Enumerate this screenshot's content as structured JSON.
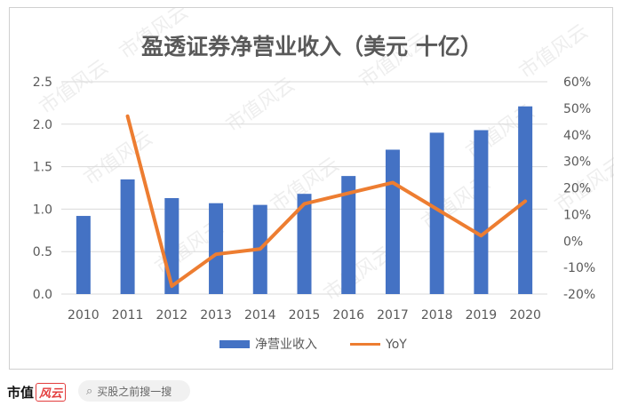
{
  "chart_data": {
    "type": "bar+line",
    "title": "盈透证券净营业收入（美元 十亿）",
    "categories": [
      "2010",
      "2011",
      "2012",
      "2013",
      "2014",
      "2015",
      "2016",
      "2017",
      "2018",
      "2019",
      "2020"
    ],
    "series": [
      {
        "name": "净营业收入",
        "type": "bar",
        "axis": "left",
        "values": [
          0.92,
          1.35,
          1.13,
          1.07,
          1.05,
          1.18,
          1.39,
          1.7,
          1.9,
          1.93,
          2.21
        ]
      },
      {
        "name": "YoY",
        "type": "line",
        "axis": "right",
        "values": [
          null,
          47,
          -17,
          -5,
          -3,
          14,
          18,
          22,
          12,
          2,
          15
        ]
      }
    ],
    "y_left": {
      "min": 0,
      "max": 2.5,
      "ticks": [
        "0.0",
        "0.5",
        "1.0",
        "1.5",
        "2.0",
        "2.5"
      ]
    },
    "y_right": {
      "min": -20,
      "max": 60,
      "ticks": [
        "-20%",
        "-10%",
        "0%",
        "10%",
        "20%",
        "30%",
        "40%",
        "50%",
        "60%"
      ]
    },
    "legend": "bottom",
    "grid": true,
    "colors": {
      "bar": "#4472c4",
      "line": "#ed7d31"
    }
  },
  "watermark": "市值风云",
  "footer": {
    "brand": "市值",
    "brand_mark": "风云",
    "search_placeholder": "买股之前搜一搜",
    "search_icon": "magnifier-icon"
  }
}
